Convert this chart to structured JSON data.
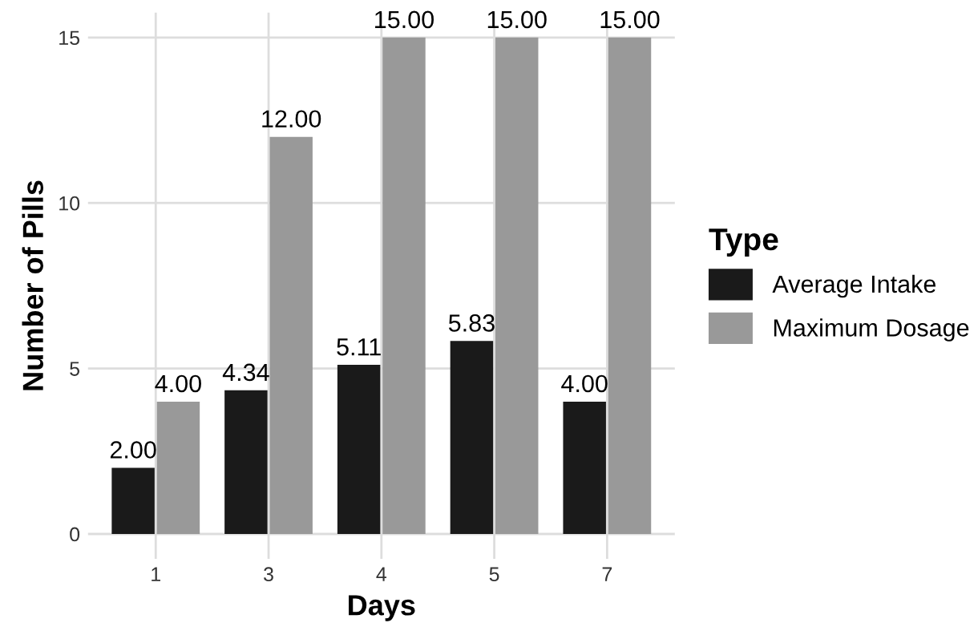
{
  "chart_data": {
    "type": "bar",
    "xlabel": "Days",
    "ylabel": "Number of Pills",
    "legend_title": "Type",
    "categories": [
      "1",
      "3",
      "4",
      "5",
      "7"
    ],
    "series": [
      {
        "name": "Average Intake",
        "color": "#1a1a1a",
        "values": [
          2.0,
          4.34,
          5.11,
          5.83,
          4.0
        ],
        "value_labels": [
          "2.00",
          "4.34",
          "5.11",
          "5.83",
          "4.00"
        ]
      },
      {
        "name": "Maximum Dosage",
        "color": "#999999",
        "values": [
          4.0,
          12.0,
          15.0,
          15.0,
          15.0
        ],
        "value_labels": [
          "4.00",
          "12.00",
          "15.00",
          "15.00",
          "15.00"
        ]
      }
    ],
    "ylim": [
      -0.75,
      15.75
    ],
    "yticks": [
      0,
      5,
      10,
      15
    ],
    "grid": true,
    "legend": "right"
  }
}
